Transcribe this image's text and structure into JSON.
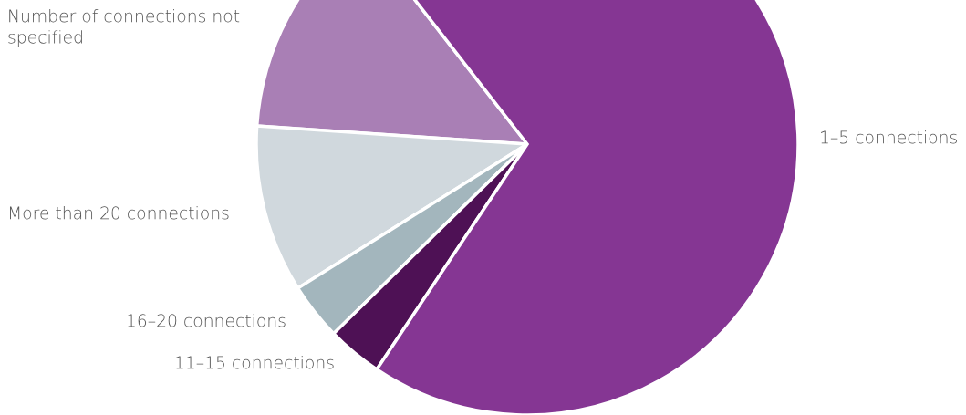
{
  "chart_data": {
    "type": "pie",
    "categories": [
      "Number of connections not\nspecified",
      "More than 20 connections",
      "16–20 connections",
      "11–15 connections",
      "1–5 connections"
    ],
    "values": [
      13.4,
      10.0,
      3.4,
      3.3,
      69.9
    ],
    "colors": [
      "#a97fb5",
      "#d0d8dd",
      "#a3b6bd",
      "#4e1155",
      "#853693"
    ]
  }
}
